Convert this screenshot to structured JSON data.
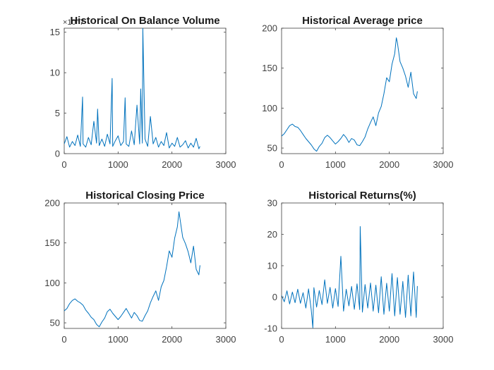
{
  "figure": {
    "background": "#ffffff",
    "line_color": "#0072bd",
    "axis_color": "#404040"
  },
  "chart_data": [
    {
      "type": "line",
      "title": "Historical On Balance Volume",
      "xlim": [
        0,
        3000
      ],
      "ylim": [
        0,
        15.5
      ],
      "xticks": [
        0,
        1000,
        2000,
        3000
      ],
      "xtick_labels": [
        "0",
        "1000",
        "2000",
        "3000"
      ],
      "yticks": [
        0,
        5,
        10,
        15
      ],
      "ytick_labels": [
        "0",
        "5",
        "10",
        "15"
      ],
      "y_exponent_label": "×10^7",
      "grid": false,
      "series": [
        {
          "x": [
            0,
            50,
            100,
            150,
            200,
            250,
            300,
            340,
            350,
            400,
            450,
            500,
            550,
            600,
            620,
            650,
            700,
            750,
            800,
            850,
            890,
            900,
            950,
            1000,
            1050,
            1100,
            1130,
            1150,
            1200,
            1250,
            1300,
            1350,
            1400,
            1420,
            1450,
            1460,
            1500,
            1550,
            1600,
            1650,
            1700,
            1750,
            1800,
            1850,
            1900,
            1950,
            2000,
            2050,
            2100,
            2150,
            2200,
            2250,
            2300,
            2350,
            2400,
            2450,
            2500,
            2520
          ],
          "values": [
            1.2,
            2.1,
            0.8,
            1.5,
            1.0,
            2.3,
            0.9,
            7.0,
            1.2,
            0.8,
            2.0,
            1.1,
            4.0,
            1.3,
            5.5,
            1.0,
            1.8,
            0.9,
            2.4,
            1.2,
            9.3,
            0.9,
            1.6,
            2.2,
            1.0,
            1.5,
            6.9,
            1.2,
            0.9,
            2.8,
            1.1,
            6.0,
            1.2,
            8.0,
            1.3,
            15.5,
            1.8,
            0.9,
            4.6,
            1.2,
            2.0,
            0.8,
            1.5,
            1.0,
            2.6,
            0.7,
            1.3,
            0.9,
            2.0,
            0.8,
            1.1,
            1.6,
            0.7,
            1.3,
            0.8,
            1.9,
            0.6,
            0.9
          ]
        }
      ]
    },
    {
      "type": "line",
      "title": "Historical Average price",
      "xlim": [
        0,
        3000
      ],
      "ylim": [
        43,
        200
      ],
      "xticks": [
        0,
        1000,
        2000,
        3000
      ],
      "xtick_labels": [
        "0",
        "1000",
        "2000",
        "3000"
      ],
      "yticks": [
        50,
        100,
        150,
        200
      ],
      "ytick_labels": [
        "50",
        "100",
        "150",
        "200"
      ],
      "grid": false,
      "series": [
        {
          "x": [
            0,
            50,
            100,
            150,
            200,
            250,
            300,
            350,
            400,
            450,
            500,
            550,
            600,
            650,
            700,
            750,
            800,
            850,
            900,
            950,
            1000,
            1050,
            1100,
            1150,
            1200,
            1250,
            1300,
            1350,
            1400,
            1450,
            1500,
            1550,
            1600,
            1650,
            1700,
            1750,
            1800,
            1850,
            1900,
            1950,
            2000,
            2050,
            2100,
            2130,
            2150,
            2200,
            2250,
            2300,
            2350,
            2400,
            2450,
            2500,
            2520
          ],
          "values": [
            65,
            68,
            73,
            78,
            80,
            77,
            76,
            72,
            67,
            62,
            58,
            54,
            49,
            46,
            52,
            56,
            63,
            66,
            63,
            59,
            55,
            58,
            62,
            67,
            63,
            57,
            62,
            60,
            54,
            53,
            58,
            64,
            74,
            82,
            89,
            78,
            94,
            102,
            118,
            138,
            133,
            155,
            168,
            188,
            182,
            158,
            150,
            140,
            126,
            145,
            118,
            112,
            121
          ]
        }
      ]
    },
    {
      "type": "line",
      "title": "Historical Closing Price",
      "xlim": [
        0,
        3000
      ],
      "ylim": [
        43,
        200
      ],
      "xticks": [
        0,
        1000,
        2000,
        3000
      ],
      "xtick_labels": [
        "0",
        "1000",
        "2000",
        "3000"
      ],
      "yticks": [
        50,
        100,
        150,
        200
      ],
      "ytick_labels": [
        "50",
        "100",
        "150",
        "200"
      ],
      "grid": false,
      "series": [
        {
          "x": [
            0,
            50,
            100,
            150,
            200,
            250,
            300,
            350,
            400,
            450,
            500,
            550,
            600,
            650,
            700,
            750,
            800,
            850,
            900,
            950,
            1000,
            1050,
            1100,
            1150,
            1200,
            1250,
            1300,
            1350,
            1400,
            1450,
            1500,
            1550,
            1600,
            1650,
            1700,
            1750,
            1800,
            1850,
            1900,
            1950,
            2000,
            2050,
            2100,
            2130,
            2150,
            2200,
            2250,
            2300,
            2350,
            2400,
            2450,
            2500,
            2520
          ],
          "values": [
            65,
            68,
            74,
            78,
            80,
            77,
            75,
            72,
            66,
            62,
            57,
            54,
            48,
            45,
            51,
            56,
            64,
            67,
            62,
            58,
            54,
            58,
            63,
            68,
            62,
            56,
            63,
            59,
            53,
            52,
            59,
            65,
            75,
            83,
            90,
            78,
            95,
            103,
            120,
            140,
            132,
            156,
            170,
            189,
            180,
            157,
            149,
            139,
            125,
            146,
            117,
            110,
            122
          ]
        }
      ]
    },
    {
      "type": "line",
      "title": "Historical Returns(%)",
      "xlim": [
        0,
        3000
      ],
      "ylim": [
        -10,
        30
      ],
      "xticks": [
        0,
        1000,
        2000,
        3000
      ],
      "xtick_labels": [
        "0",
        "1000",
        "2000",
        "3000"
      ],
      "yticks": [
        -10,
        0,
        10,
        20,
        30
      ],
      "ytick_labels": [
        "-10",
        "0",
        "10",
        "20",
        "30"
      ],
      "grid": false,
      "series": [
        {
          "x": [
            0,
            50,
            100,
            150,
            200,
            250,
            300,
            350,
            400,
            450,
            500,
            550,
            580,
            600,
            650,
            700,
            750,
            800,
            850,
            900,
            950,
            1000,
            1050,
            1100,
            1150,
            1200,
            1250,
            1300,
            1350,
            1400,
            1450,
            1460,
            1500,
            1550,
            1600,
            1650,
            1700,
            1750,
            1800,
            1850,
            1900,
            1950,
            2000,
            2050,
            2100,
            2150,
            2200,
            2250,
            2300,
            2350,
            2400,
            2450,
            2500,
            2520
          ],
          "values": [
            0.5,
            -1.5,
            2.0,
            -2.2,
            1.6,
            -1.8,
            2.5,
            -2.0,
            1.4,
            -3.5,
            2.6,
            -4.0,
            -9.8,
            3.0,
            -3.2,
            2.1,
            -2.4,
            5.5,
            -2.0,
            3.1,
            -3.5,
            2.7,
            -3.0,
            13.0,
            -4.5,
            2.5,
            -2.8,
            3.4,
            -3.9,
            4.2,
            -4.0,
            22.5,
            -4.8,
            4.0,
            -3.5,
            4.5,
            -4.5,
            3.8,
            -5.0,
            6.5,
            -5.5,
            4.4,
            -4.5,
            7.5,
            -6.0,
            6.2,
            -5.5,
            5.0,
            -6.5,
            7.0,
            -6.0,
            8.0,
            -6.5,
            3.5
          ]
        }
      ]
    }
  ]
}
